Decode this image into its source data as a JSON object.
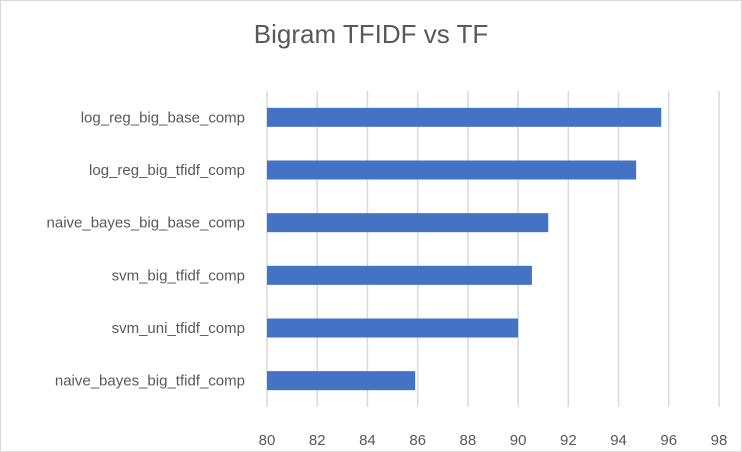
{
  "chart_data": {
    "type": "bar",
    "orientation": "horizontal",
    "title": "Bigram TFIDF vs TF",
    "xlabel": "",
    "ylabel": "",
    "categories": [
      "log_reg_big_base_comp",
      "log_reg_big_tfidf_comp",
      "naive_bayes_big_base_comp",
      "svm_big_tfidf_comp",
      "svm_uni_tfidf_comp",
      "naive_bayes_big_tfidf_comp"
    ],
    "values": [
      95.7,
      94.7,
      91.2,
      90.55,
      90.0,
      85.9
    ],
    "xlim": [
      80,
      98
    ],
    "xticks": [
      "80",
      "82",
      "84",
      "86",
      "88",
      "90",
      "92",
      "94",
      "96",
      "98"
    ],
    "grid": true,
    "legend": "none",
    "bar_color": "#4472c4",
    "grid_color": "#d9d9d9",
    "text_color": "#595959"
  }
}
